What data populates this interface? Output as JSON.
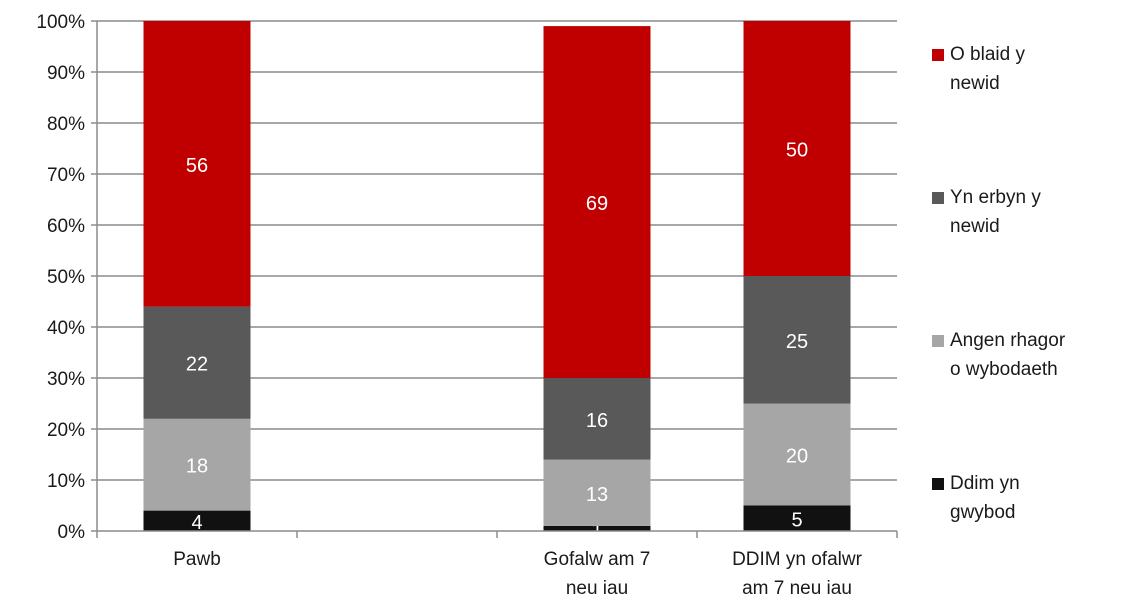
{
  "chart_data": {
    "type": "bar",
    "stacked": true,
    "percent_stacked": true,
    "title": "",
    "xlabel": "",
    "ylabel": "",
    "ylim": [
      0,
      100
    ],
    "yticks": [
      "0%",
      "10%",
      "20%",
      "30%",
      "40%",
      "50%",
      "60%",
      "70%",
      "80%",
      "90%",
      "100%"
    ],
    "grid": true,
    "legend_placement": "right",
    "categories": [
      [
        "Pawb"
      ],
      [],
      [
        "Gofalw am 7",
        "neu iau"
      ],
      [
        "DDIM yn ofalwr",
        "am 7 neu iau"
      ]
    ],
    "series": [
      {
        "name": "Ddim yn gwybod",
        "name_lines": [
          "Ddim yn",
          "gwybod"
        ],
        "color": "#111111",
        "label_color": "#ffffff",
        "values": [
          4,
          null,
          1,
          5
        ]
      },
      {
        "name": "Angen rhagor o wybodaeth",
        "name_lines": [
          "Angen rhagor",
          "o wybodaeth"
        ],
        "color": "#a6a6a6",
        "label_color": "#ffffff",
        "values": [
          18,
          null,
          13,
          20
        ]
      },
      {
        "name": "Yn erbyn y newid",
        "name_lines": [
          "Yn erbyn y",
          "newid"
        ],
        "color": "#595959",
        "label_color": "#ffffff",
        "values": [
          22,
          null,
          16,
          25
        ]
      },
      {
        "name": "O blaid y newid",
        "name_lines": [
          "O blaid y",
          "newid"
        ],
        "color": "#c00000",
        "label_color": "#ffffff",
        "values": [
          56,
          null,
          69,
          50
        ]
      }
    ]
  }
}
